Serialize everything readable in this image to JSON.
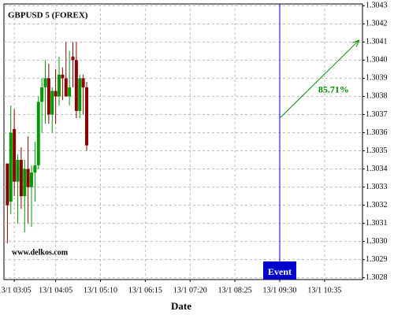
{
  "chart_data": {
    "type": "candlestick",
    "title": "GBPUSD 5 (FOREX)",
    "watermark": "www.delkos.com",
    "x_label": "Date",
    "x": [
      "13/1 02:55",
      "13/1 03:00",
      "13/1 03:05",
      "13/1 03:10",
      "13/1 03:15",
      "13/1 03:20",
      "13/1 03:25",
      "13/1 03:30",
      "13/1 03:35",
      "13/1 03:40",
      "13/1 03:45",
      "13/1 03:50",
      "13/1 03:55",
      "13/1 04:00",
      "13/1 04:05",
      "13/1 04:10",
      "13/1 04:15",
      "13/1 04:20",
      "13/1 04:25",
      "13/1 04:30",
      "13/1 04:35",
      "13/1 04:40",
      "13/1 04:45",
      "13/1 04:50"
    ],
    "open": [
      1.30343,
      1.30322,
      1.30362,
      1.30333,
      1.30345,
      1.30325,
      1.3034,
      1.3033,
      1.30338,
      1.30342,
      1.30377,
      1.30385,
      1.3039,
      1.3037,
      1.30383,
      1.3038,
      1.30392,
      1.3039,
      1.3038,
      1.30402,
      1.304,
      1.30372,
      1.3039,
      1.30385
    ],
    "high": [
      1.30343,
      1.30375,
      1.30373,
      1.30348,
      1.30352,
      1.30345,
      1.30358,
      1.30342,
      1.30355,
      1.3038,
      1.3039,
      1.304,
      1.30398,
      1.30385,
      1.30395,
      1.30402,
      1.30396,
      1.3041,
      1.30405,
      1.3041,
      1.3041,
      1.30392,
      1.30392,
      1.30388
    ],
    "low": [
      1.30299,
      1.30315,
      1.30325,
      1.3031,
      1.30318,
      1.30305,
      1.3031,
      1.30308,
      1.30322,
      1.3034,
      1.3036,
      1.30365,
      1.30365,
      1.3036,
      1.30365,
      1.30375,
      1.30378,
      1.3038,
      1.30375,
      1.30385,
      1.30368,
      1.30368,
      1.3037,
      1.3035
    ],
    "close": [
      1.3032,
      1.3036,
      1.30333,
      1.30345,
      1.30325,
      1.3034,
      1.3033,
      1.30338,
      1.30342,
      1.30377,
      1.30385,
      1.3039,
      1.3037,
      1.30383,
      1.3038,
      1.30392,
      1.3039,
      1.3038,
      1.30385,
      1.304,
      1.30372,
      1.3039,
      1.30385,
      1.30353
    ],
    "up_color": "#009900",
    "down_color": "#8b0000",
    "xlim": [
      "13/1 02:50",
      "13/1 11:30"
    ],
    "xticks": [
      "13/1 03:05",
      "13/1 04:05",
      "13/1 05:10",
      "13/1 06:15",
      "13/1 07:20",
      "13/1 08:25",
      "13/1 09:30",
      "13/1 10:35"
    ],
    "ylim": [
      1.30279,
      1.30431
    ],
    "yticks": [
      1.3028,
      1.3029,
      {
        "value": 1.303,
        "label": "1.3030"
      },
      1.3031,
      1.3032,
      1.3033,
      1.3034,
      1.3035,
      1.3036,
      1.3037,
      1.3038,
      1.3039,
      {
        "value": 1.304,
        "label": "1.3040"
      },
      1.3041,
      1.3042,
      1.3043
    ],
    "grid": true,
    "event": {
      "x": "13/1 09:30",
      "label": "Event",
      "color": "#0000cc"
    },
    "arrow": {
      "x": [
        "13/1 09:30",
        "13/1 11:25"
      ],
      "y": [
        1.30368,
        1.30411
      ],
      "label": "85.71%",
      "color": "#008800"
    }
  }
}
